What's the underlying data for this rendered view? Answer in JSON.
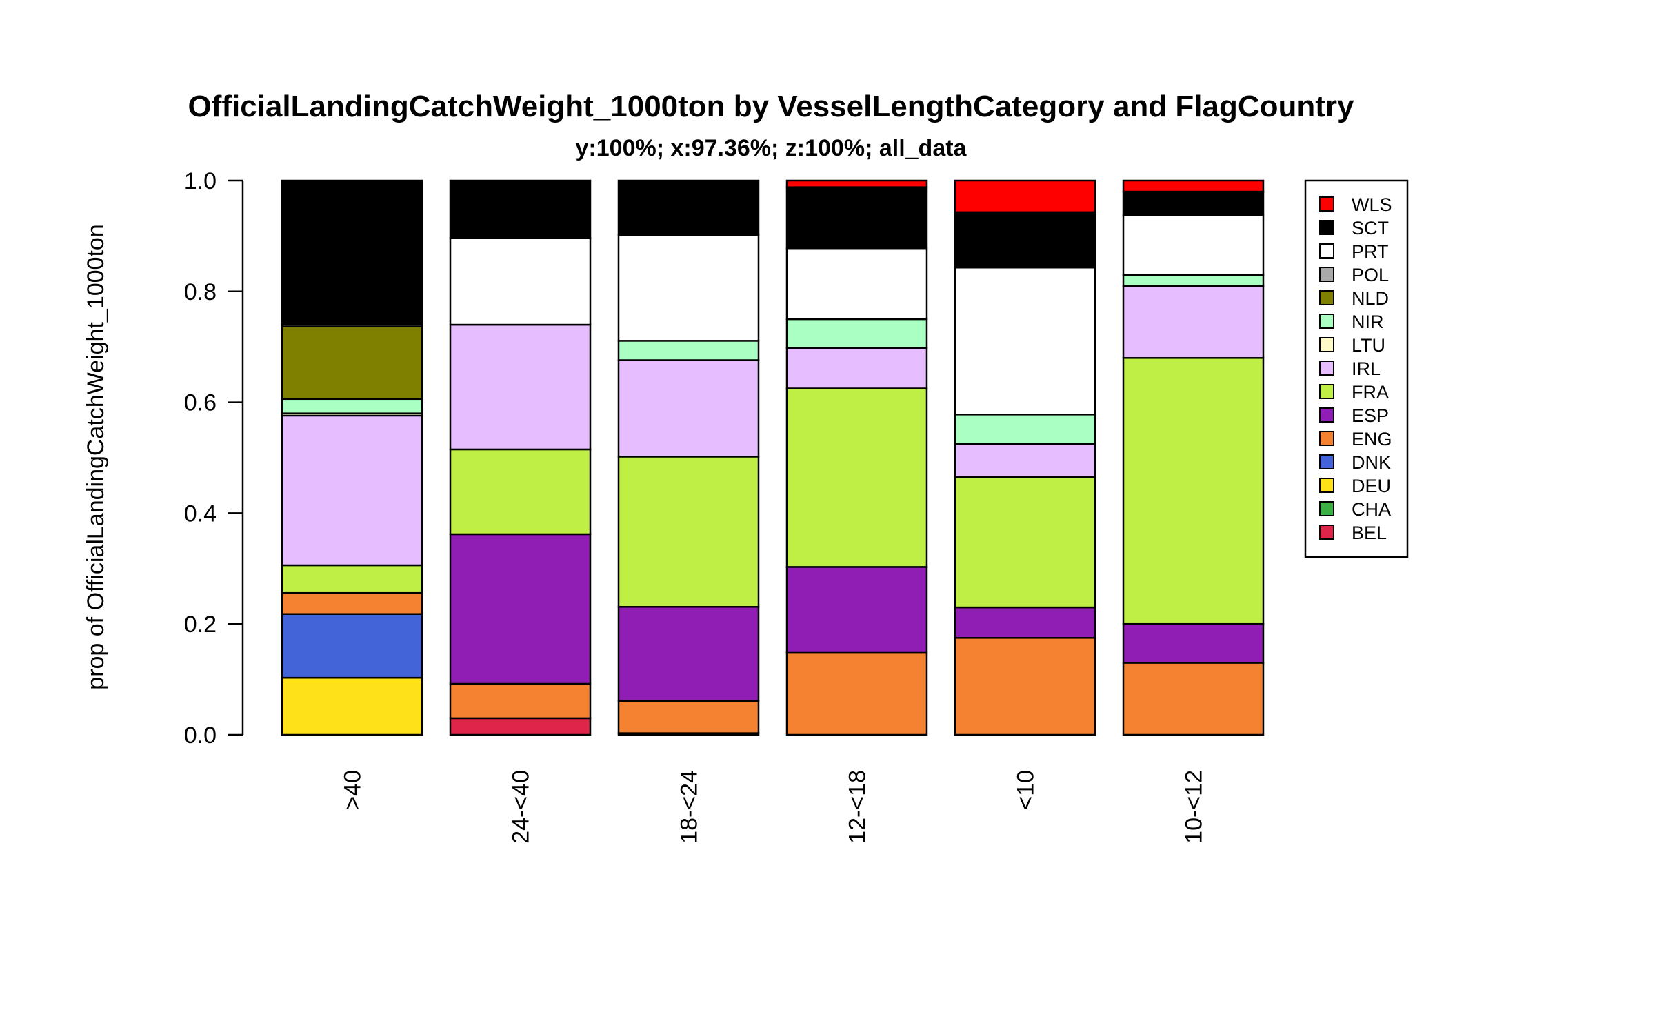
{
  "chart_data": {
    "type": "bar",
    "stacked": true,
    "title": "OfficialLandingCatchWeight_1000ton by VesselLengthCategory and FlagCountry",
    "subtitle": "y:100%; x:97.36%; z:100%; all_data",
    "ylabel": "prop of OfficialLandingCatchWeight_1000ton",
    "xlabel": "",
    "ylim": [
      0,
      1
    ],
    "yticks": [
      "0.0",
      "0.2",
      "0.4",
      "0.6",
      "0.8",
      "1.0"
    ],
    "categories": [
      ">40",
      "24-<40",
      "18-<24",
      "12-<18",
      "<10",
      "10-<12"
    ],
    "legend_position": "right",
    "series": [
      {
        "name": "BEL",
        "color": "#E0254A",
        "values": [
          0.0,
          0.03,
          0.0,
          0.0,
          0.0,
          0.0
        ]
      },
      {
        "name": "CHA",
        "color": "#3CB043",
        "values": [
          0.0,
          0.0,
          0.0,
          0.0,
          0.0,
          0.0
        ]
      },
      {
        "name": "DEU",
        "color": "#FFE119",
        "values": [
          0.103,
          0.0,
          0.003,
          0.0,
          0.0,
          0.0
        ]
      },
      {
        "name": "DNK",
        "color": "#4363D8",
        "values": [
          0.115,
          0.0,
          0.0,
          0.0,
          0.0,
          0.0
        ]
      },
      {
        "name": "ENG",
        "color": "#F58231",
        "values": [
          0.038,
          0.062,
          0.058,
          0.148,
          0.175,
          0.13
        ]
      },
      {
        "name": "ESP",
        "color": "#911EB4",
        "values": [
          0.0,
          0.27,
          0.17,
          0.155,
          0.055,
          0.07
        ]
      },
      {
        "name": "FRA",
        "color": "#BFEF45",
        "values": [
          0.05,
          0.153,
          0.271,
          0.322,
          0.235,
          0.48
        ]
      },
      {
        "name": "IRL",
        "color": "#E6BEFF",
        "values": [
          0.27,
          0.225,
          0.174,
          0.073,
          0.06,
          0.13
        ]
      },
      {
        "name": "LTU",
        "color": "#FFFAC8",
        "values": [
          0.004,
          0.0,
          0.0,
          0.0,
          0.0,
          0.0
        ]
      },
      {
        "name": "NIR",
        "color": "#AAFFC3",
        "values": [
          0.026,
          0.0,
          0.035,
          0.052,
          0.053,
          0.02
        ]
      },
      {
        "name": "NLD",
        "color": "#808000",
        "values": [
          0.131,
          0.0,
          0.0,
          0.0,
          0.0,
          0.0
        ]
      },
      {
        "name": "POL",
        "color": "#A9A9A9",
        "values": [
          0.004,
          0.0,
          0.0,
          0.0,
          0.0,
          0.0
        ]
      },
      {
        "name": "PRT",
        "color": "#FFFFFF",
        "values": [
          0.0,
          0.156,
          0.191,
          0.128,
          0.265,
          0.108
        ]
      },
      {
        "name": "SCT",
        "color": "#000000",
        "values": [
          0.259,
          0.104,
          0.098,
          0.11,
          0.1,
          0.042
        ]
      },
      {
        "name": "WLS",
        "color": "#FF0000",
        "values": [
          0.0,
          0.0,
          0.0,
          0.012,
          0.057,
          0.02
        ]
      }
    ]
  }
}
